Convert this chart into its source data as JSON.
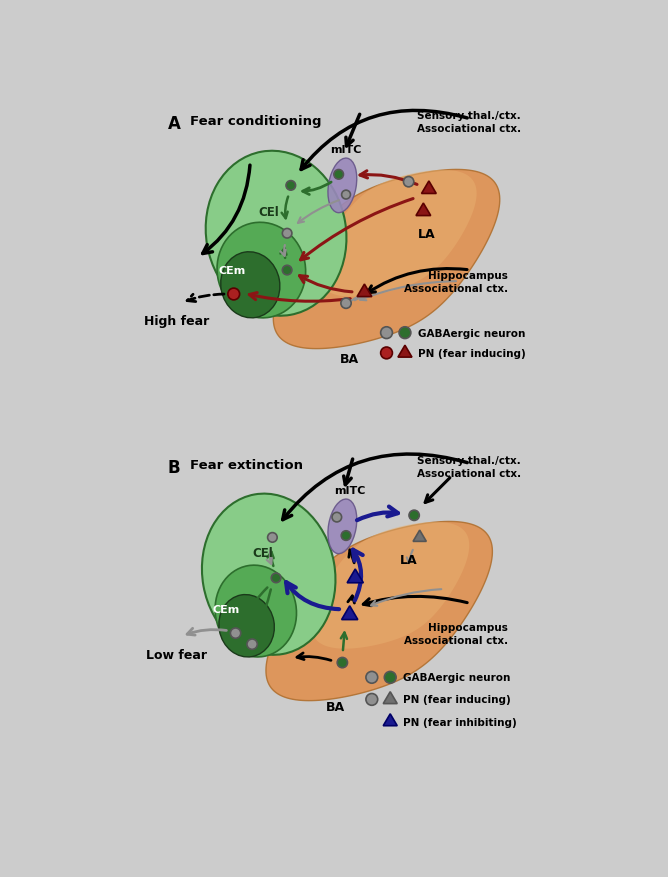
{
  "bg_color": "#cccccc",
  "panel_bg": "#c8c8c8",
  "orange_color": "#e09050",
  "orange_edge": "#b07030",
  "green_cel_light": "#88cc88",
  "green_cel_main": "#55aa55",
  "green_dark": "#2d6e2d",
  "green_dark2": "#336633",
  "purple_mitc": "#9988bb",
  "purple_mitc_edge": "#665588",
  "gray_neuron": "#909090",
  "gray_edge": "#555555",
  "dark_red": "#8b1515",
  "dark_red_edge": "#5a0000",
  "red_neuron": "#aa2020",
  "navy_blue": "#1a1a90",
  "navy_edge": "#000066",
  "dark_gray_tri": "#707070",
  "label_a": "Fear conditioning",
  "label_b": "Fear extinction",
  "sensory_label": "Sensory thal./ctx.\nAssociational ctx.",
  "hippo_label": "Hippocampus\nAssociational ctx.",
  "mitc_label": "mITC",
  "la_label": "LA",
  "ba_label": "BA",
  "cei_label": "CEl",
  "cem_label": "CEm",
  "high_fear": "High fear",
  "low_fear": "Low fear",
  "legend_gaba": "GABAergic neuron",
  "legend_pn_fear": "PN (fear inducing)",
  "legend_pn_inhib": "PN (fear inhibiting)"
}
